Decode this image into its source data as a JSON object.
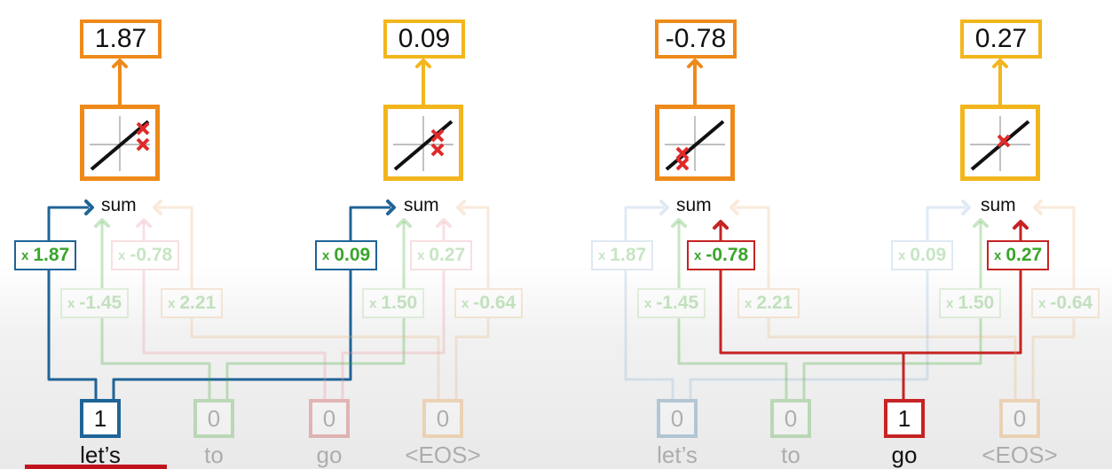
{
  "colors": {
    "orange": "#ee8a1a",
    "gold": "#f2b61c",
    "blue": "#1f6497",
    "green": "#3aa52b",
    "red": "#c62323",
    "pink": "#e8909a",
    "tan": "#e8b37a",
    "light_green": "#9fd28e",
    "light_blue": "#8fb3d6"
  },
  "left_panel": {
    "outputs": [
      "1.87",
      "0.09"
    ],
    "sum_labels": [
      "sum",
      "sum"
    ],
    "weights_top": [
      "1.87",
      "-0.78",
      "0.09",
      "0.27"
    ],
    "weights_bottom": [
      "-1.45",
      "2.21",
      "1.50",
      "-0.64"
    ],
    "inputs": [
      {
        "value": "1",
        "token": "let’s"
      },
      {
        "value": "0",
        "token": "to"
      },
      {
        "value": "0",
        "token": "go"
      },
      {
        "value": "0",
        "token": "<EOS>"
      }
    ]
  },
  "right_panel": {
    "outputs": [
      "-0.78",
      "0.27"
    ],
    "sum_labels": [
      "sum",
      "sum"
    ],
    "weights_top": [
      "1.87",
      "-0.78",
      "0.09",
      "0.27"
    ],
    "weights_bottom": [
      "-1.45",
      "2.21",
      "1.50",
      "-0.64"
    ],
    "inputs": [
      {
        "value": "0",
        "token": "let’s"
      },
      {
        "value": "0",
        "token": "to"
      },
      {
        "value": "1",
        "token": "go"
      },
      {
        "value": "0",
        "token": "<EOS>"
      }
    ]
  },
  "weight_prefix": "x",
  "icons": {
    "activation_plot": "linear-activation-plot-icon",
    "cross_mark": "x-mark-icon",
    "arrow": "arrow-icon"
  }
}
